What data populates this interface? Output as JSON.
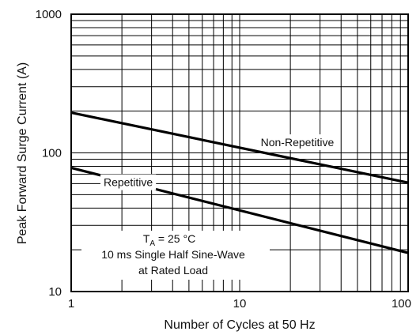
{
  "chart_data": {
    "type": "line",
    "title": "",
    "xlabel": "Number of Cycles at 50 Hz",
    "ylabel": "Peak Forward Surge Current (A)",
    "xscale": "log",
    "yscale": "log",
    "xlim": [
      1,
      100
    ],
    "ylim": [
      10,
      1000
    ],
    "grid": true,
    "x_ticks": [
      {
        "value": 1,
        "label": "1"
      },
      {
        "value": 10,
        "label": "10"
      },
      {
        "value": 100,
        "label": "100"
      }
    ],
    "y_ticks": [
      {
        "value": 10,
        "label": "10"
      },
      {
        "value": 100,
        "label": "100"
      },
      {
        "value": 1000,
        "label": "1000"
      }
    ],
    "series": [
      {
        "name": "Non-Repetitive",
        "x": [
          1,
          100
        ],
        "values": [
          195,
          61
        ]
      },
      {
        "name": "Repetitive",
        "x": [
          1,
          100
        ],
        "values": [
          78,
          19
        ]
      }
    ],
    "annotation": {
      "ta_symbol": "T",
      "ta_subscript": "A",
      "ta_value": " = 25 °C",
      "line2": "10 ms Single Half Sine-Wave",
      "line3": "at Rated Load"
    }
  }
}
